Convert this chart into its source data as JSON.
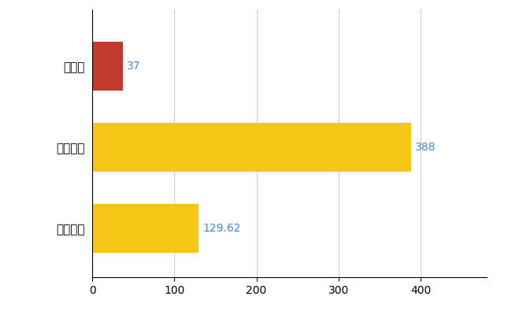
{
  "categories": [
    "全国平均",
    "全国最大",
    "鳥取県"
  ],
  "values": [
    129.62,
    388,
    37
  ],
  "colors": [
    "#F5C518",
    "#F5C518",
    "#C0392B"
  ],
  "xlim": [
    0,
    480
  ],
  "xticks": [
    0,
    100,
    200,
    300,
    400
  ],
  "bar_labels": [
    "129.62",
    "388",
    "37"
  ],
  "label_color": "#4488CC",
  "grid_color": "#CCCCCC",
  "background_color": "#FFFFFF",
  "bar_height": 0.6
}
